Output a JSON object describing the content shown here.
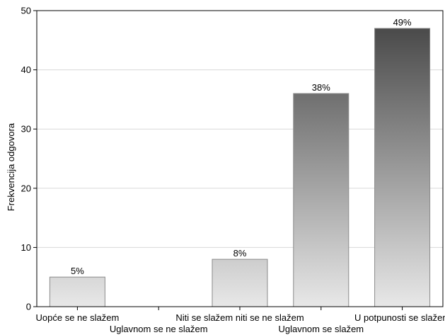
{
  "chart_data": {
    "type": "bar",
    "title": "",
    "xlabel": "",
    "ylabel": "Frekvencija odgovora",
    "ylim": [
      0,
      50
    ],
    "yticks": [
      0,
      10,
      20,
      30,
      40,
      50
    ],
    "grid": true,
    "categories": [
      "Uopće se ne slažem",
      "Uglavnom se ne slažem",
      "Niti se slažem niti se ne slažem",
      "Uglavnom se slažem",
      "U potpunosti se slažem"
    ],
    "values": [
      5,
      0,
      8,
      36,
      47
    ],
    "data_labels": [
      "5%",
      "",
      "8%",
      "38%",
      "49%"
    ],
    "bar_style": "vertical gradient, darker for higher values",
    "colors": {
      "bar_light": "#e8e8e8",
      "bar_dark": "#4a4a4a",
      "grid": "#d9d9d9",
      "axis": "#000000"
    }
  }
}
